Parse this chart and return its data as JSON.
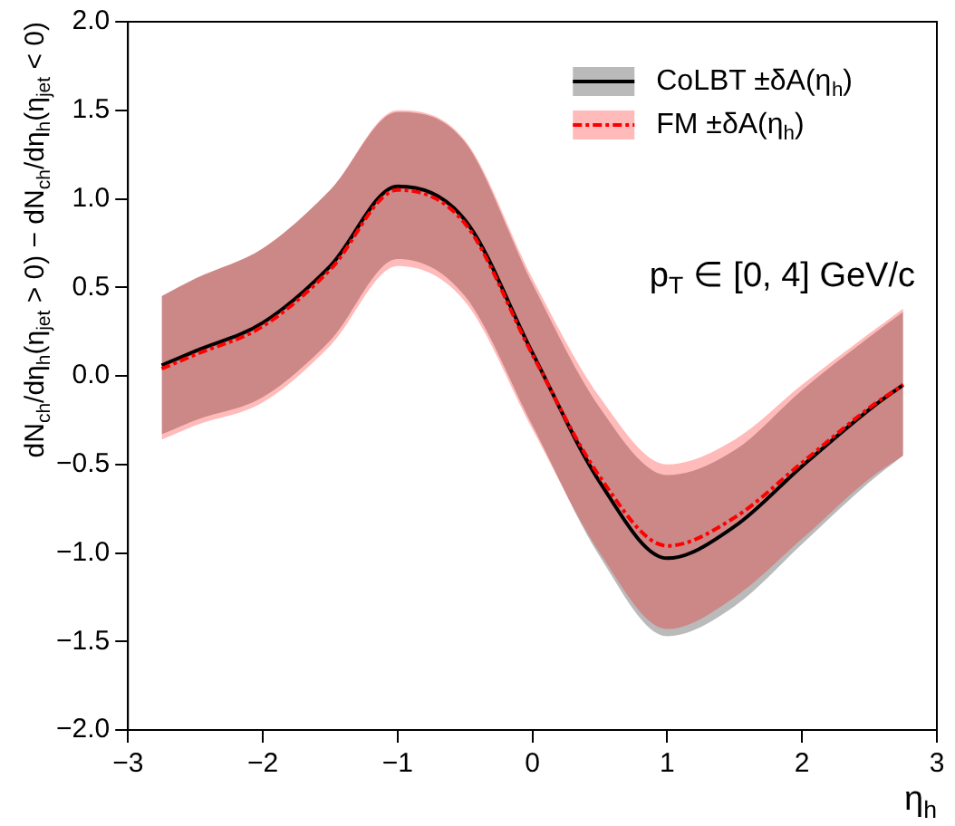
{
  "chart_data": {
    "type": "line",
    "xlabel": "η$_{h}$",
    "ylabel": "dN$_{ch}$/dη$_{h}$(η$_{jet}$ > 0) − dN$_{ch}$/dη$_{h}$(η$_{jet}$ < 0)",
    "x": [
      -2.75,
      -2.5,
      -2,
      -1.5,
      -1,
      -0.5,
      0,
      0.5,
      1,
      1.5,
      2,
      2.5,
      2.75
    ],
    "series": [
      {
        "name": "CoLBT ±δA(η$_{h}$)",
        "color": "#000000",
        "line_style": "solid",
        "values": [
          0.06,
          0.14,
          0.3,
          0.62,
          1.07,
          0.88,
          0.13,
          -0.6,
          -1.03,
          -0.85,
          -0.51,
          -0.19,
          -0.05
        ],
        "upper": [
          0.45,
          0.55,
          0.72,
          1.05,
          1.49,
          1.32,
          0.52,
          -0.18,
          -0.56,
          -0.42,
          -0.08,
          0.22,
          0.36
        ],
        "lower": [
          -0.33,
          -0.25,
          -0.12,
          0.2,
          0.66,
          0.45,
          -0.28,
          -1.02,
          -1.47,
          -1.3,
          -0.95,
          -0.6,
          -0.45
        ]
      },
      {
        "name": "FM ±δA(η$_{h}$)",
        "color": "#ff0000",
        "line_style": "dashed",
        "values": [
          0.04,
          0.12,
          0.28,
          0.6,
          1.05,
          0.86,
          0.12,
          -0.57,
          -0.96,
          -0.8,
          -0.49,
          -0.18,
          -0.05
        ],
        "upper": [
          0.45,
          0.55,
          0.72,
          1.05,
          1.5,
          1.33,
          0.55,
          -0.12,
          -0.5,
          -0.36,
          -0.05,
          0.24,
          0.38
        ],
        "lower": [
          -0.36,
          -0.28,
          -0.15,
          0.17,
          0.62,
          0.42,
          -0.3,
          -1.0,
          -1.43,
          -1.25,
          -0.92,
          -0.58,
          -0.45
        ]
      }
    ],
    "xlim": [
      -3,
      3
    ],
    "xticks": [
      -3,
      -2,
      -1,
      0,
      1,
      2,
      3
    ],
    "ylim": [
      -2,
      2
    ],
    "yticks": [
      {
        "value": -2,
        "label": "−2.0"
      },
      {
        "value": -1.5,
        "label": "−1.5"
      },
      {
        "value": -1,
        "label": "−1.0"
      },
      {
        "value": -0.5,
        "label": "−0.5"
      },
      {
        "value": 0,
        "label": "0.0"
      },
      {
        "value": 0.5,
        "label": "0.5"
      },
      {
        "value": 1,
        "label": "1.0"
      },
      {
        "value": 1.5,
        "label": "1.5"
      },
      {
        "value": 2,
        "label": "2.0"
      }
    ],
    "annotations": [
      "p$_{T}$ ∈ [0, 4] GeV/c"
    ],
    "legend": "top right",
    "grid": false
  }
}
